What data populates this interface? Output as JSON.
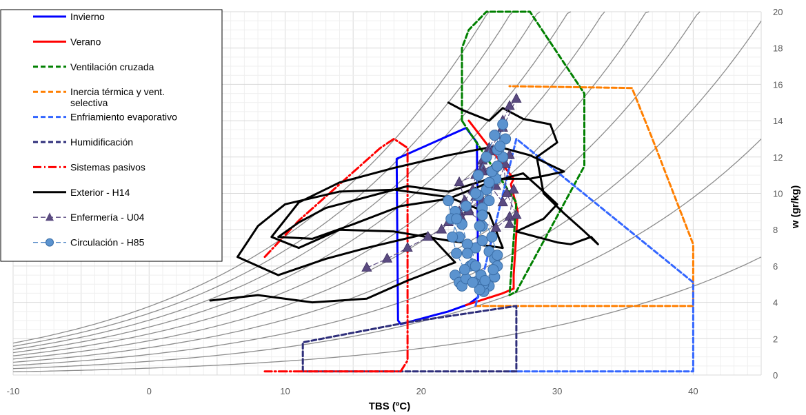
{
  "chart_data": {
    "type": "line",
    "xlabel": "TBS (ºC)",
    "ylabel": "w (gr/kg)",
    "xlim": [
      -10,
      45
    ],
    "ylim": [
      0,
      20
    ],
    "x_ticks": [
      "-10",
      "0",
      "10",
      "20",
      "30",
      "40"
    ],
    "y_ticks": [
      "0",
      "2",
      "4",
      "6",
      "8",
      "10",
      "12",
      "14",
      "16",
      "18",
      "20"
    ],
    "grid": true,
    "legend_position": "top-left",
    "humidity_curves_rh": [
      0.1,
      0.2,
      0.3,
      0.4,
      0.5,
      0.6,
      0.7,
      0.8,
      0.9,
      1.0
    ],
    "series": [
      {
        "name": "Invierno",
        "color": "#0000ff",
        "style": "solid",
        "x": [
          18.3,
          18.5,
          19.0,
          20.0,
          22.0,
          23.5,
          24.2,
          24.1,
          23.3,
          18.2,
          18.3
        ],
        "y": [
          3.0,
          2.8,
          2.9,
          3.1,
          3.5,
          3.9,
          4.3,
          12.8,
          13.6,
          11.9,
          3.0
        ]
      },
      {
        "name": "Verano",
        "color": "#ff0000",
        "style": "solid",
        "x": [
          23.3,
          26.0,
          26.8,
          26.8,
          27.1,
          26.6,
          26.8,
          23.5
        ],
        "y": [
          3.85,
          4.5,
          4.75,
          5.5,
          9.0,
          10.5,
          10.8,
          14.0
        ]
      },
      {
        "name": "Ventilación cruzada",
        "color": "#008000",
        "style": "dashed",
        "x": [
          23.0,
          23.0,
          23.5,
          24.8,
          28.0,
          32.0,
          32.0,
          27.0,
          26.5,
          27.0,
          23.0
        ],
        "y": [
          14.0,
          18.0,
          19.0,
          20.0,
          20.0,
          15.5,
          11.5,
          4.6,
          4.4,
          9.5,
          14.0
        ]
      },
      {
        "name": "Inercia térmica y vent. selectiva",
        "color": "#ff7f00",
        "style": "dashed",
        "x": [
          24.0,
          40.0,
          40.0,
          37.0,
          35.5,
          26.5
        ],
        "y": [
          3.8,
          3.8,
          7.2,
          13.0,
          15.8,
          15.9
        ]
      },
      {
        "name": "Enfriamiento evaporativo",
        "color": "#3366ff",
        "style": "dashed",
        "x": [
          26.5,
          40.0,
          40.0,
          27.0,
          24.0
        ],
        "y": [
          0.2,
          0.2,
          5.1,
          13.0,
          3.8
        ]
      },
      {
        "name": "Humidificación",
        "color": "#2e2e7a",
        "style": "dashed",
        "x": [
          11.3,
          11.3,
          19.0,
          27.0,
          27.0,
          11.3
        ],
        "y": [
          0.2,
          1.8,
          2.9,
          3.8,
          0.2,
          0.2
        ]
      },
      {
        "name": "Sistemas pasivos",
        "color": "#ff0000",
        "style": "dashdot",
        "x": [
          8.5,
          11.0,
          17.0,
          18.0,
          19.0,
          19.0,
          19.0,
          19.0,
          18.5,
          8.5
        ],
        "y": [
          6.5,
          8.5,
          12.5,
          13.0,
          12.5,
          9.0,
          3.0,
          0.8,
          0.2,
          0.2
        ]
      },
      {
        "name": "Exterior - H14",
        "color": "#000000",
        "style": "solid",
        "x": [
          4.5,
          8.0,
          12.0,
          16.0,
          19.0,
          22.5,
          20.5,
          16.0,
          13.0,
          9.5,
          6.5,
          8.0,
          10.0,
          14.0,
          18.0,
          22.0,
          25.0,
          26.0,
          22.0,
          18.0,
          14.0,
          11.0,
          9.0,
          11.0,
          14.0,
          18.0,
          22.0,
          25.5,
          28.0,
          30.5,
          28.0,
          25.0,
          22.0,
          19.0,
          16.0,
          13.0,
          11.0,
          9.5,
          12.0,
          15.0,
          18.5,
          22.0,
          25.0,
          27.5,
          29.0,
          30.0,
          29.0,
          27.0,
          30.0,
          31.0,
          32.5,
          33.0,
          32.0,
          30.5,
          29.0,
          28.5,
          30.0,
          29.5,
          27.5,
          26.0,
          25.0,
          24.0,
          23.0,
          22.0
        ],
        "y": [
          4.1,
          4.4,
          4.0,
          4.2,
          5.2,
          6.2,
          7.8,
          7.0,
          6.4,
          5.5,
          6.5,
          8.2,
          9.4,
          10.1,
          10.2,
          9.8,
          8.9,
          7.0,
          7.4,
          7.9,
          8.0,
          7.0,
          7.6,
          9.5,
          10.6,
          11.4,
          12.1,
          12.6,
          12.1,
          11.2,
          10.8,
          10.8,
          10.1,
          10.4,
          9.8,
          9.2,
          8.4,
          7.6,
          7.5,
          8.3,
          9.3,
          9.7,
          10.6,
          11.1,
          10.1,
          9.4,
          8.6,
          7.9,
          7.3,
          7.2,
          7.6,
          7.2,
          7.9,
          8.9,
          10.0,
          12.0,
          12.8,
          13.8,
          14.1,
          14.7,
          14.0,
          14.3,
          14.6,
          15.0
        ]
      },
      {
        "name": "Enfermería - U04",
        "color": "#5a4a80",
        "style": "dashed",
        "marker": "triangle",
        "x": [
          16.0,
          17.5,
          19.0,
          20.5,
          21.5,
          22.0,
          22.8,
          23.2,
          23.8,
          24.0,
          24.5,
          25.0,
          25.5,
          26.0,
          26.5,
          27.0,
          26.0,
          25.0,
          24.5,
          25.2,
          26.2,
          26.5,
          25.5,
          24.5,
          23.5,
          23.0,
          24.0,
          25.0,
          26.0,
          26.8,
          26.5,
          25.5,
          24.5,
          23.5,
          22.8,
          24.5,
          26.0,
          26.3,
          27.0,
          26.5
        ],
        "y": [
          5.9,
          6.4,
          7.0,
          7.6,
          8.0,
          8.4,
          9.0,
          9.6,
          10.2,
          11.0,
          11.8,
          12.5,
          13.2,
          14.0,
          14.8,
          15.2,
          13.6,
          12.3,
          11.4,
          10.8,
          11.6,
          12.1,
          10.4,
          9.6,
          9.1,
          8.6,
          9.8,
          10.5,
          9.5,
          10.2,
          8.7,
          8.1,
          8.4,
          9.0,
          10.6,
          11.2,
          12.0,
          10.0,
          8.8,
          8.3
        ]
      },
      {
        "name": "Circulación - H85",
        "color": "#4e86c6",
        "style": "dashed",
        "marker": "circle",
        "x": [
          22.5,
          22.8,
          23.0,
          23.3,
          23.6,
          24.0,
          24.5,
          25.0,
          25.5,
          26.0,
          26.2,
          26.0,
          25.6,
          25.2,
          24.8,
          24.5,
          24.3,
          24.5,
          25.0,
          25.4,
          25.6,
          25.4,
          25.0,
          24.6,
          24.2,
          23.8,
          23.4,
          23.0,
          22.5,
          22.0,
          22.2,
          22.8,
          23.4,
          24.0,
          24.4,
          24.6,
          24.3,
          23.8,
          23.2,
          22.6,
          22.3,
          22.6,
          23.3,
          24.2,
          25.0,
          25.6,
          25.8,
          25.4,
          24.8,
          24.2,
          24.0,
          24.5,
          25.2,
          25.6,
          25.3,
          24.7
        ],
        "y": [
          5.5,
          5.1,
          4.9,
          5.3,
          6.0,
          7.0,
          8.2,
          9.6,
          10.8,
          12.0,
          13.0,
          13.8,
          12.4,
          11.2,
          10.2,
          9.2,
          8.2,
          7.4,
          6.8,
          6.4,
          6.0,
          5.4,
          4.9,
          4.6,
          5.2,
          6.1,
          7.2,
          8.3,
          9.0,
          9.6,
          8.6,
          7.6,
          6.7,
          6.0,
          5.5,
          5.0,
          4.7,
          5.1,
          5.8,
          6.7,
          7.6,
          8.6,
          9.3,
          9.9,
          10.6,
          11.5,
          12.6,
          13.2,
          12.0,
          11.0,
          10.0,
          8.8,
          7.6,
          6.6,
          5.8,
          5.2
        ]
      }
    ]
  }
}
